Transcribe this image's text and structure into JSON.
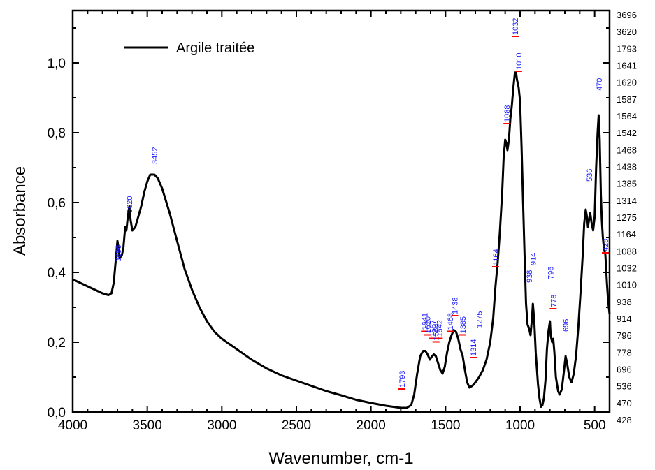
{
  "chart_data": {
    "type": "line",
    "xlabel": "Wavenumber, cm-1",
    "ylabel": "Absorbance",
    "xlim": [
      4000,
      400
    ],
    "ylim": [
      0,
      1.15
    ],
    "x_reversed": true,
    "x_ticks": [
      4000,
      3500,
      3000,
      2500,
      2000,
      1500,
      1000,
      500
    ],
    "x_tick_labels": [
      "4000",
      "3500",
      "3000",
      "2500",
      "2000",
      "1500",
      "1000",
      "500"
    ],
    "y_ticks": [
      0.0,
      0.2,
      0.4,
      0.6,
      0.8,
      1.0
    ],
    "y_tick_labels": [
      "0,0",
      "0,2",
      "0,4",
      "0,6",
      "0,8",
      "1,0"
    ],
    "series": [
      {
        "name": "Argile traitée",
        "color": "#000000",
        "points": [
          [
            4000,
            0.38
          ],
          [
            3950,
            0.37
          ],
          [
            3900,
            0.36
          ],
          [
            3850,
            0.35
          ],
          [
            3800,
            0.34
          ],
          [
            3760,
            0.335
          ],
          [
            3740,
            0.34
          ],
          [
            3725,
            0.37
          ],
          [
            3712,
            0.43
          ],
          [
            3700,
            0.49
          ],
          [
            3693,
            0.47
          ],
          [
            3685,
            0.44
          ],
          [
            3670,
            0.45
          ],
          [
            3660,
            0.47
          ],
          [
            3648,
            0.53
          ],
          [
            3640,
            0.52
          ],
          [
            3630,
            0.56
          ],
          [
            3620,
            0.59
          ],
          [
            3612,
            0.55
          ],
          [
            3600,
            0.52
          ],
          [
            3580,
            0.53
          ],
          [
            3560,
            0.56
          ],
          [
            3540,
            0.59
          ],
          [
            3520,
            0.63
          ],
          [
            3500,
            0.66
          ],
          [
            3480,
            0.68
          ],
          [
            3452,
            0.68
          ],
          [
            3430,
            0.67
          ],
          [
            3400,
            0.64
          ],
          [
            3350,
            0.57
          ],
          [
            3300,
            0.49
          ],
          [
            3250,
            0.41
          ],
          [
            3200,
            0.35
          ],
          [
            3150,
            0.3
          ],
          [
            3100,
            0.26
          ],
          [
            3050,
            0.23
          ],
          [
            3000,
            0.21
          ],
          [
            2900,
            0.18
          ],
          [
            2800,
            0.15
          ],
          [
            2700,
            0.125
          ],
          [
            2600,
            0.105
          ],
          [
            2500,
            0.09
          ],
          [
            2400,
            0.075
          ],
          [
            2300,
            0.06
          ],
          [
            2200,
            0.048
          ],
          [
            2100,
            0.035
          ],
          [
            2000,
            0.026
          ],
          [
            1900,
            0.018
          ],
          [
            1800,
            0.012
          ],
          [
            1760,
            0.012
          ],
          [
            1730,
            0.02
          ],
          [
            1710,
            0.05
          ],
          [
            1690,
            0.11
          ],
          [
            1670,
            0.16
          ],
          [
            1650,
            0.175
          ],
          [
            1635,
            0.175
          ],
          [
            1620,
            0.165
          ],
          [
            1605,
            0.15
          ],
          [
            1590,
            0.16
          ],
          [
            1578,
            0.165
          ],
          [
            1565,
            0.16
          ],
          [
            1550,
            0.14
          ],
          [
            1535,
            0.12
          ],
          [
            1520,
            0.11
          ],
          [
            1505,
            0.13
          ],
          [
            1490,
            0.17
          ],
          [
            1475,
            0.2
          ],
          [
            1460,
            0.22
          ],
          [
            1445,
            0.235
          ],
          [
            1430,
            0.23
          ],
          [
            1415,
            0.21
          ],
          [
            1400,
            0.18
          ],
          [
            1385,
            0.16
          ],
          [
            1370,
            0.12
          ],
          [
            1355,
            0.085
          ],
          [
            1340,
            0.07
          ],
          [
            1320,
            0.075
          ],
          [
            1300,
            0.085
          ],
          [
            1275,
            0.1
          ],
          [
            1250,
            0.12
          ],
          [
            1225,
            0.15
          ],
          [
            1200,
            0.2
          ],
          [
            1180,
            0.27
          ],
          [
            1165,
            0.36
          ],
          [
            1150,
            0.43
          ],
          [
            1135,
            0.52
          ],
          [
            1120,
            0.63
          ],
          [
            1110,
            0.73
          ],
          [
            1100,
            0.78
          ],
          [
            1092,
            0.77
          ],
          [
            1085,
            0.75
          ],
          [
            1075,
            0.78
          ],
          [
            1065,
            0.84
          ],
          [
            1055,
            0.88
          ],
          [
            1045,
            0.93
          ],
          [
            1035,
            0.97
          ],
          [
            1028,
            0.975
          ],
          [
            1020,
            0.95
          ],
          [
            1010,
            0.93
          ],
          [
            1000,
            0.89
          ],
          [
            990,
            0.76
          ],
          [
            980,
            0.6
          ],
          [
            970,
            0.45
          ],
          [
            960,
            0.31
          ],
          [
            950,
            0.25
          ],
          [
            940,
            0.24
          ],
          [
            930,
            0.22
          ],
          [
            920,
            0.27
          ],
          [
            914,
            0.31
          ],
          [
            905,
            0.26
          ],
          [
            895,
            0.17
          ],
          [
            880,
            0.08
          ],
          [
            870,
            0.04
          ],
          [
            860,
            0.015
          ],
          [
            850,
            0.02
          ],
          [
            840,
            0.04
          ],
          [
            830,
            0.09
          ],
          [
            820,
            0.18
          ],
          [
            810,
            0.23
          ],
          [
            800,
            0.26
          ],
          [
            795,
            0.22
          ],
          [
            785,
            0.2
          ],
          [
            778,
            0.21
          ],
          [
            770,
            0.17
          ],
          [
            760,
            0.1
          ],
          [
            745,
            0.06
          ],
          [
            735,
            0.05
          ],
          [
            720,
            0.065
          ],
          [
            705,
            0.12
          ],
          [
            695,
            0.16
          ],
          [
            685,
            0.14
          ],
          [
            670,
            0.1
          ],
          [
            655,
            0.085
          ],
          [
            640,
            0.11
          ],
          [
            625,
            0.16
          ],
          [
            610,
            0.24
          ],
          [
            595,
            0.34
          ],
          [
            580,
            0.45
          ],
          [
            570,
            0.54
          ],
          [
            560,
            0.58
          ],
          [
            552,
            0.56
          ],
          [
            545,
            0.53
          ],
          [
            538,
            0.55
          ],
          [
            530,
            0.57
          ],
          [
            520,
            0.54
          ],
          [
            510,
            0.52
          ],
          [
            500,
            0.56
          ],
          [
            490,
            0.7
          ],
          [
            480,
            0.8
          ],
          [
            473,
            0.85
          ],
          [
            466,
            0.78
          ],
          [
            458,
            0.62
          ],
          [
            452,
            0.55
          ],
          [
            445,
            0.5
          ],
          [
            438,
            0.47
          ],
          [
            428,
            0.45
          ],
          [
            418,
            0.37
          ],
          [
            410,
            0.32
          ],
          [
            400,
            0.28
          ]
        ]
      }
    ],
    "peak_annotations": [
      {
        "x": 3696,
        "y": 0.43,
        "label": "3696",
        "marker": false
      },
      {
        "x": 3620,
        "y": 0.57,
        "label": "3620",
        "marker": false
      },
      {
        "x": 3452,
        "y": 0.71,
        "label": "3452",
        "marker": false
      },
      {
        "x": 1793,
        "y": 0.07,
        "label": "1793",
        "marker": true
      },
      {
        "x": 1641,
        "y": 0.235,
        "label": "1641",
        "marker": true
      },
      {
        "x": 1620,
        "y": 0.225,
        "label": "1620",
        "marker": true
      },
      {
        "x": 1587,
        "y": 0.215,
        "label": "1587",
        "marker": true
      },
      {
        "x": 1564,
        "y": 0.205,
        "label": "1564",
        "marker": true
      },
      {
        "x": 1542,
        "y": 0.215,
        "label": "1542",
        "marker": true
      },
      {
        "x": 1468,
        "y": 0.235,
        "label": "1468",
        "marker": true
      },
      {
        "x": 1438,
        "y": 0.28,
        "label": "1438",
        "marker": true
      },
      {
        "x": 1385,
        "y": 0.225,
        "label": "1385",
        "marker": true
      },
      {
        "x": 1314,
        "y": 0.16,
        "label": "1314",
        "marker": true
      },
      {
        "x": 1275,
        "y": 0.24,
        "label": "1275",
        "marker": false
      },
      {
        "x": 1164,
        "y": 0.42,
        "label": "1164",
        "marker": true
      },
      {
        "x": 1088,
        "y": 0.83,
        "label": "1088",
        "marker": true
      },
      {
        "x": 1032,
        "y": 1.08,
        "label": "1032",
        "marker": true
      },
      {
        "x": 1010,
        "y": 0.98,
        "label": "1010",
        "marker": true
      },
      {
        "x": 938,
        "y": 0.37,
        "label": "938",
        "marker": false
      },
      {
        "x": 914,
        "y": 0.42,
        "label": "914",
        "marker": false
      },
      {
        "x": 796,
        "y": 0.38,
        "label": "796",
        "marker": false
      },
      {
        "x": 778,
        "y": 0.3,
        "label": "778",
        "marker": true
      },
      {
        "x": 696,
        "y": 0.23,
        "label": "696",
        "marker": false
      },
      {
        "x": 536,
        "y": 0.66,
        "label": "536",
        "marker": false
      },
      {
        "x": 470,
        "y": 0.92,
        "label": "470",
        "marker": false
      },
      {
        "x": 428,
        "y": 0.46,
        "label": "428",
        "marker": true
      }
    ]
  },
  "legend": {
    "label": "Argile traitée",
    "position": "top-left"
  },
  "side_labels": [
    "3696",
    "3620",
    "1793",
    "1641",
    "1620",
    "1587",
    "1564",
    "1542",
    "1468",
    "1438",
    "1385",
    "1314",
    "1275",
    "1164",
    "1088",
    "1032",
    "1010",
    "938",
    "914",
    "796",
    "778",
    "696",
    "536",
    "470",
    "428"
  ],
  "colors": {
    "line": "#000000",
    "peak_label": "#1a1aff",
    "peak_marker": "#ff0000"
  }
}
